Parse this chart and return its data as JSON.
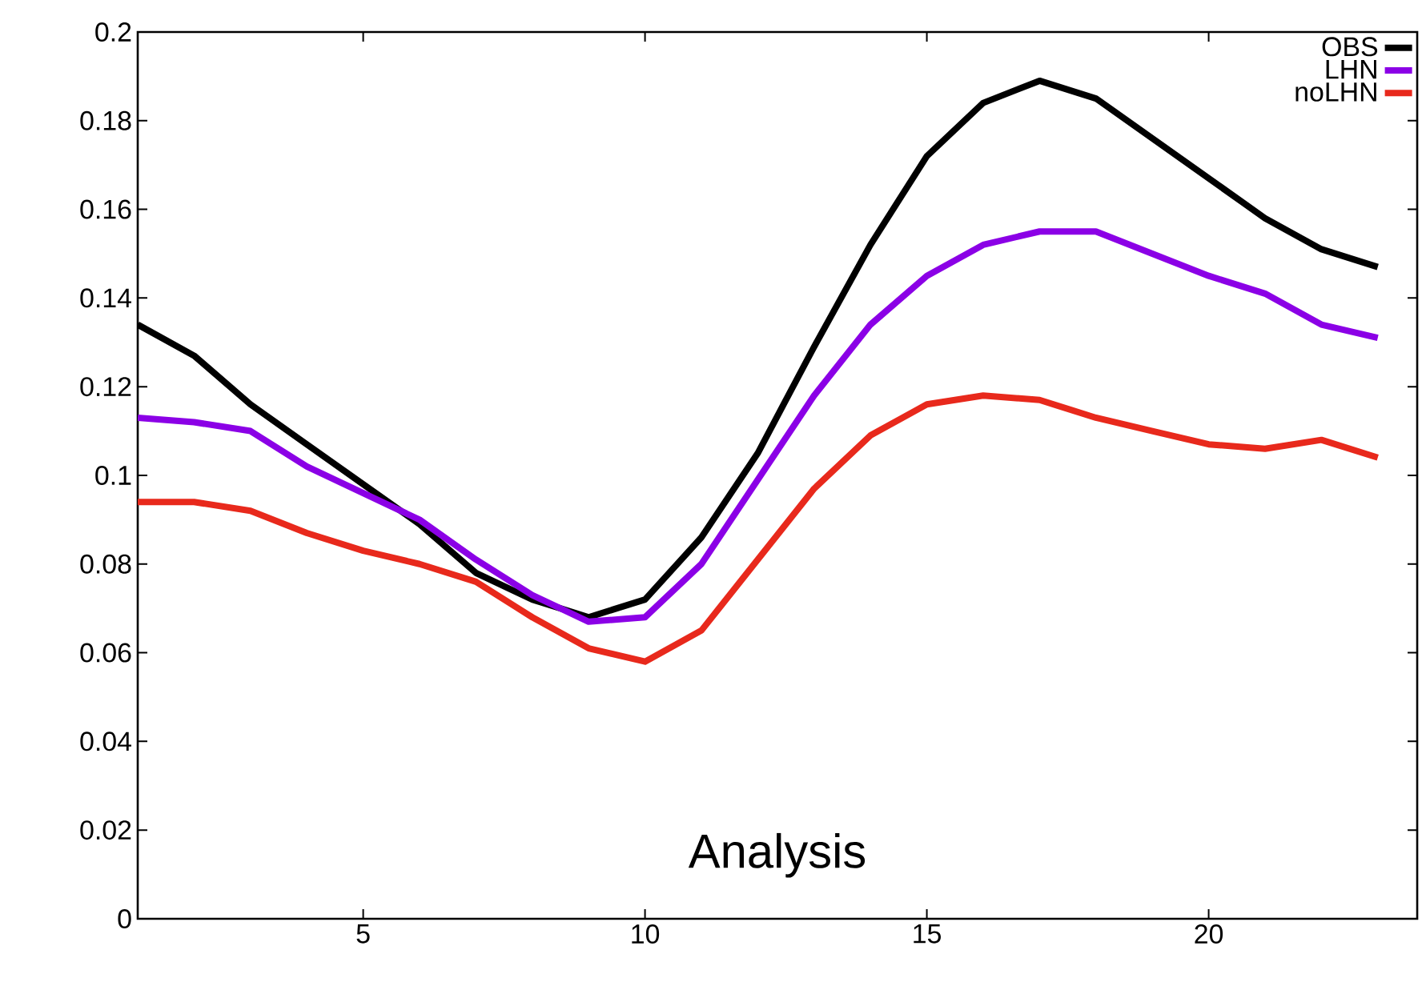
{
  "chart_data": {
    "type": "line",
    "x": [
      1,
      2,
      3,
      4,
      5,
      6,
      7,
      8,
      9,
      10,
      11,
      12,
      13,
      14,
      15,
      16,
      17,
      18,
      19,
      20,
      21,
      22,
      23
    ],
    "series": [
      {
        "name": "OBS",
        "color": "#000000",
        "values": [
          0.134,
          0.127,
          0.116,
          0.107,
          0.098,
          0.089,
          0.078,
          0.072,
          0.068,
          0.072,
          0.086,
          0.105,
          0.129,
          0.152,
          0.172,
          0.184,
          0.189,
          0.185,
          0.176,
          0.167,
          0.158,
          0.151,
          0.147
        ]
      },
      {
        "name": "LHN",
        "color": "#8b00e6",
        "values": [
          0.113,
          0.112,
          0.11,
          0.102,
          0.096,
          0.09,
          0.081,
          0.073,
          0.067,
          0.068,
          0.08,
          0.099,
          0.118,
          0.134,
          0.145,
          0.152,
          0.155,
          0.155,
          0.15,
          0.145,
          0.141,
          0.134,
          0.131
        ]
      },
      {
        "name": "noLHN",
        "color": "#e8291c",
        "values": [
          0.094,
          0.094,
          0.092,
          0.087,
          0.083,
          0.08,
          0.076,
          0.068,
          0.061,
          0.058,
          0.065,
          0.081,
          0.097,
          0.109,
          0.116,
          0.118,
          0.117,
          0.113,
          0.11,
          0.107,
          0.106,
          0.108,
          0.104
        ]
      }
    ],
    "xlim": [
      1,
      23.7
    ],
    "ylim": [
      0,
      0.2
    ],
    "xticks": [
      5,
      10,
      15,
      20
    ],
    "yticks": [
      0,
      0.02,
      0.04,
      0.06,
      0.08,
      0.1,
      0.12,
      0.14,
      0.16,
      0.18,
      0.2
    ],
    "annotations": [
      "Analysis"
    ],
    "legend": "top right",
    "grid": false,
    "marker": "none",
    "line_style": "solid"
  }
}
